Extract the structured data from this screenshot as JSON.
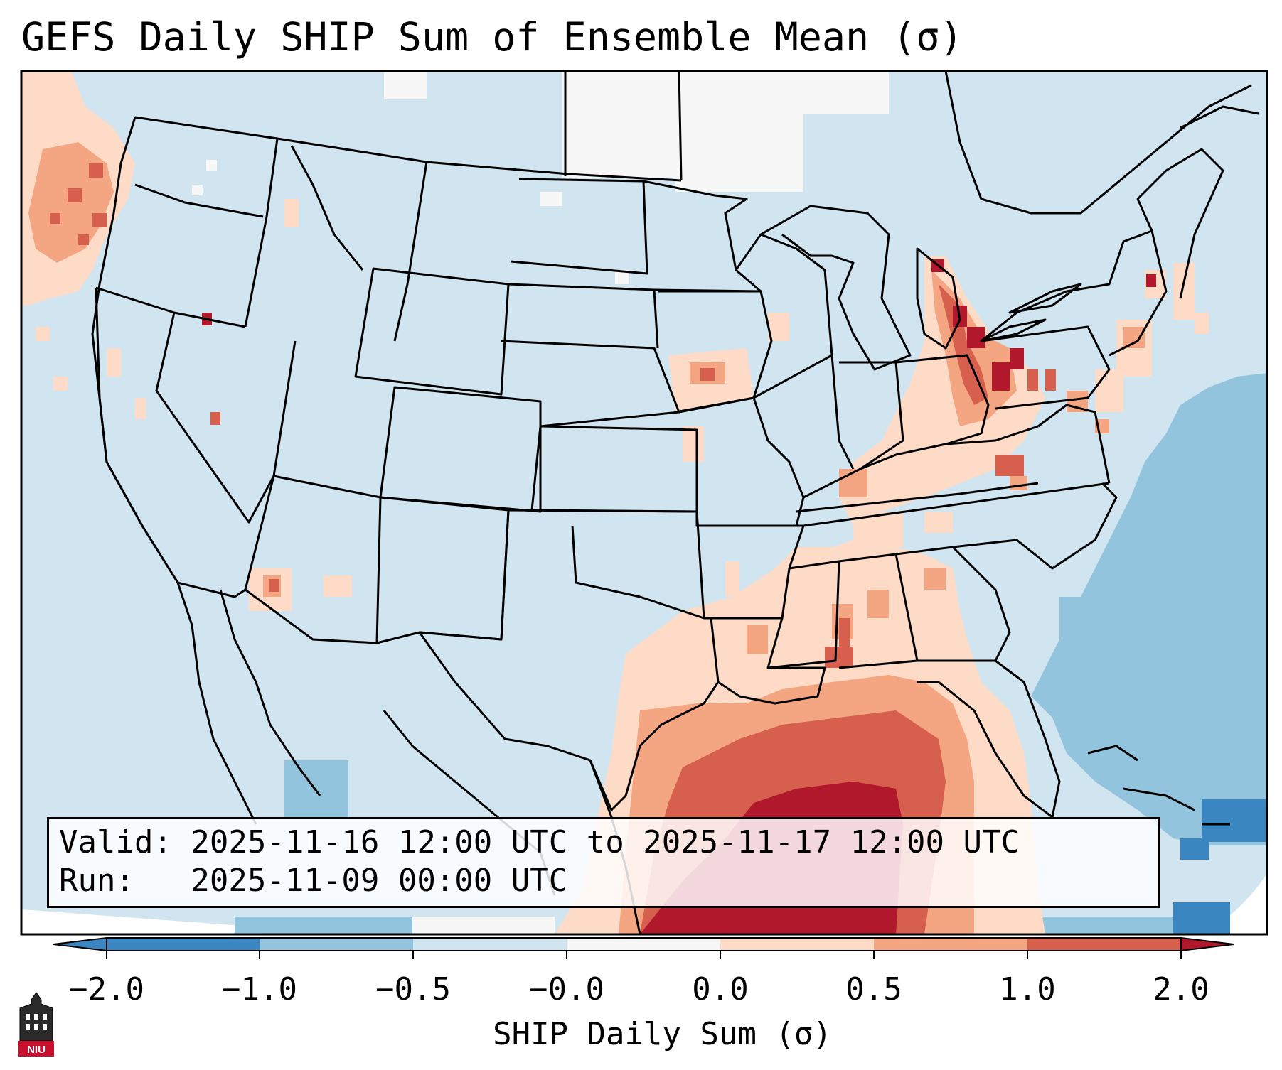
{
  "title": "GEFS Daily SHIP Sum of Ensemble Mean (σ)",
  "info": {
    "valid_line": "Valid: 2025-11-16 12:00 UTC to 2025-11-17 12:00 UTC",
    "run_line": "Run:   2025-11-09 00:00 UTC"
  },
  "colorbar": {
    "label": "SHIP Daily Sum (σ)",
    "ticks": [
      "−2.0",
      "−1.0",
      "−0.5",
      "−0.0",
      "0.0",
      "0.5",
      "1.0",
      "2.0"
    ],
    "colors": [
      "#3a86c0",
      "#92c4de",
      "#d1e5f0",
      "#f7f7f7",
      "#fddbc7",
      "#f4a582",
      "#d6604d",
      "#b2182b"
    ]
  },
  "logo": {
    "text": "NIU",
    "icon": "niu-logo-icon"
  }
}
